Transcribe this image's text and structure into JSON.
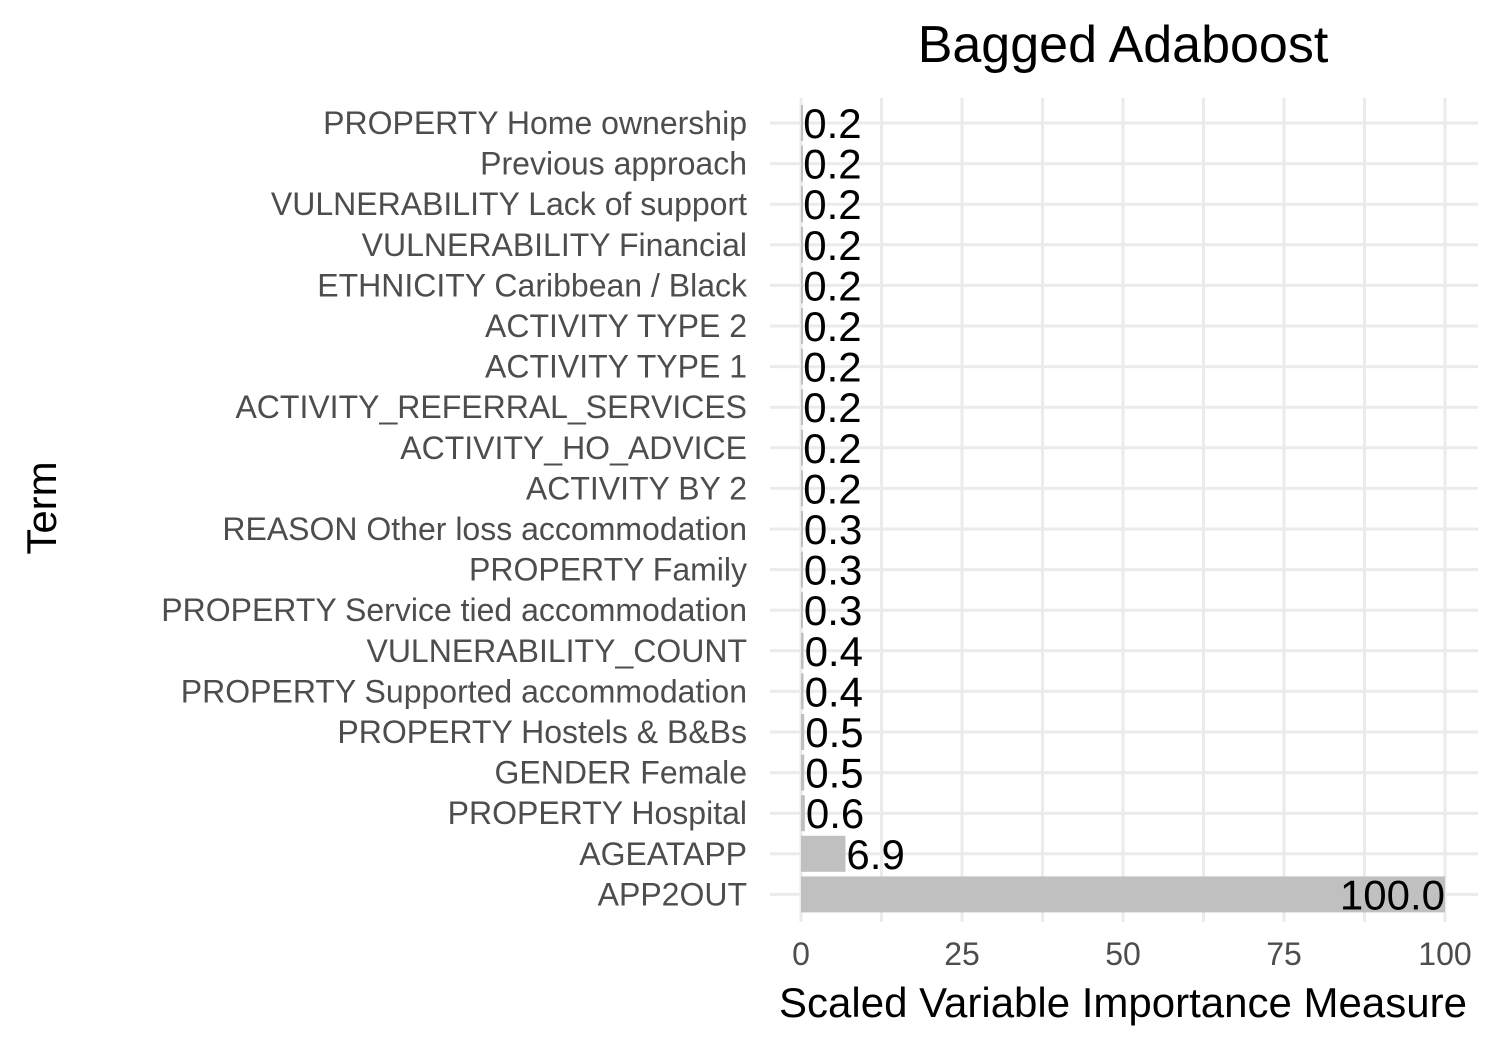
{
  "chart_data": {
    "type": "bar",
    "orientation": "horizontal",
    "title": "Bagged Adaboost",
    "xlabel": "Scaled Variable Importance Measure",
    "ylabel": "Term",
    "xlim": [
      0,
      100
    ],
    "xticks": [
      0,
      25,
      50,
      75,
      100
    ],
    "grid": true,
    "bar_color": "#c0c0c0",
    "categories": [
      "PROPERTY Home ownership",
      "Previous approach",
      "VULNERABILITY Lack of support",
      "VULNERABILITY Financial",
      "ETHNICITY Caribbean / Black",
      "ACTIVITY TYPE 2",
      "ACTIVITY TYPE 1",
      "ACTIVITY_REFERRAL_SERVICES",
      "ACTIVITY_HO_ADVICE",
      "ACTIVITY BY 2",
      "REASON Other loss accommodation",
      "PROPERTY Family",
      "PROPERTY Service tied accommodation",
      "VULNERABILITY_COUNT",
      "PROPERTY Supported accommodation",
      "PROPERTY Hostels & B&Bs",
      "GENDER Female",
      "PROPERTY Hospital",
      "AGEATAPP",
      "APP2OUT"
    ],
    "values": [
      0.2,
      0.2,
      0.2,
      0.2,
      0.2,
      0.2,
      0.2,
      0.2,
      0.2,
      0.2,
      0.3,
      0.3,
      0.3,
      0.4,
      0.4,
      0.5,
      0.5,
      0.6,
      6.9,
      100.0
    ],
    "value_labels": [
      "0.2",
      "0.2",
      "0.2",
      "0.2",
      "0.2",
      "0.2",
      "0.2",
      "0.2",
      "0.2",
      "0.2",
      "0.3",
      "0.3",
      "0.3",
      "0.4",
      "0.4",
      "0.5",
      "0.5",
      "0.6",
      "6.9",
      "100.0"
    ]
  }
}
